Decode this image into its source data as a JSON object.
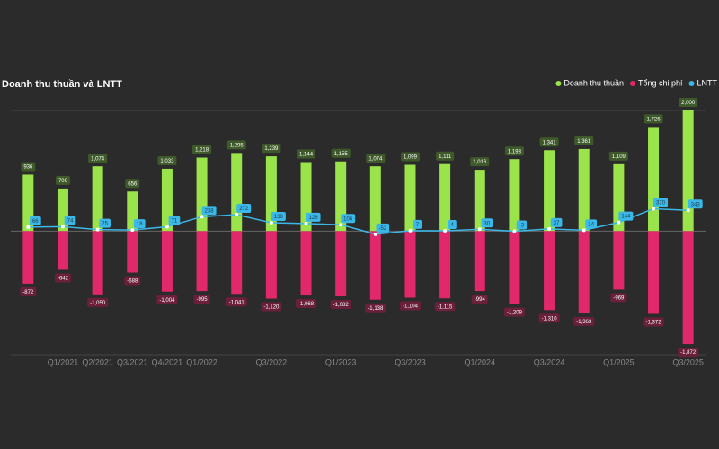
{
  "chart_data": {
    "type": "bar",
    "title": "Doanh thu thuần và LNTT",
    "categories": [
      null,
      "Q1/2021",
      "Q2/2021",
      "Q3/2021",
      "Q4/2021",
      "Q1/2022",
      null,
      "Q3/2022",
      null,
      "Q1/2023",
      null,
      "Q3/2023",
      null,
      "Q1/2024",
      null,
      "Q3/2024",
      null,
      "Q1/2025",
      null,
      "Q3/2025"
    ],
    "series": [
      {
        "name": "Doanh thu thuần",
        "color": "#9be34a",
        "kind": "bar",
        "values": [
          936,
          706,
          1074,
          656,
          1033,
          1218,
          1295,
          1239,
          1144,
          1155,
          1074,
          1099,
          1111,
          1016,
          1193,
          1341,
          1361,
          1109,
          1726,
          2000
        ],
        "value_labels": [
          "936",
          "706",
          "1,074",
          "656",
          "1,033",
          "1,218",
          "1,295",
          "1,239",
          "1,144",
          "1,155",
          "1,074",
          "1,099",
          "1,111",
          "1,016",
          "1,193",
          "1,341",
          "1,361",
          "1,109",
          "1,726",
          "2,000"
        ]
      },
      {
        "name": "Tổng chi phí",
        "color": "#e0286a",
        "kind": "bar",
        "values": [
          -872,
          -642,
          -1050,
          -688,
          -1004,
          -995,
          -1041,
          -1120,
          -1068,
          -1082,
          -1138,
          -1104,
          -1115,
          -994,
          -1209,
          -1310,
          -1363,
          -969,
          -1372,
          -1872
        ],
        "value_labels": [
          "-872",
          "-642",
          "-1,050",
          "-688",
          "-1,004",
          "-995",
          "-1,041",
          "-1,120",
          "-1,068",
          "-1,082",
          "-1,138",
          "-1,104",
          "-1,115",
          "-994",
          "-1,209",
          "-1,310",
          "-1,363",
          "-969",
          "-1,372",
          "-1,872"
        ]
      },
      {
        "name": "LNTT",
        "color": "#3bb8e8",
        "kind": "line",
        "values": [
          66,
          74,
          25,
          18,
          71,
          238,
          272,
          138,
          126,
          106,
          -52,
          7,
          4,
          30,
          -3,
          37,
          14,
          144,
          370,
          343
        ]
      }
    ],
    "ylim": [
      -2050,
      2000
    ],
    "legend": "top-right"
  }
}
